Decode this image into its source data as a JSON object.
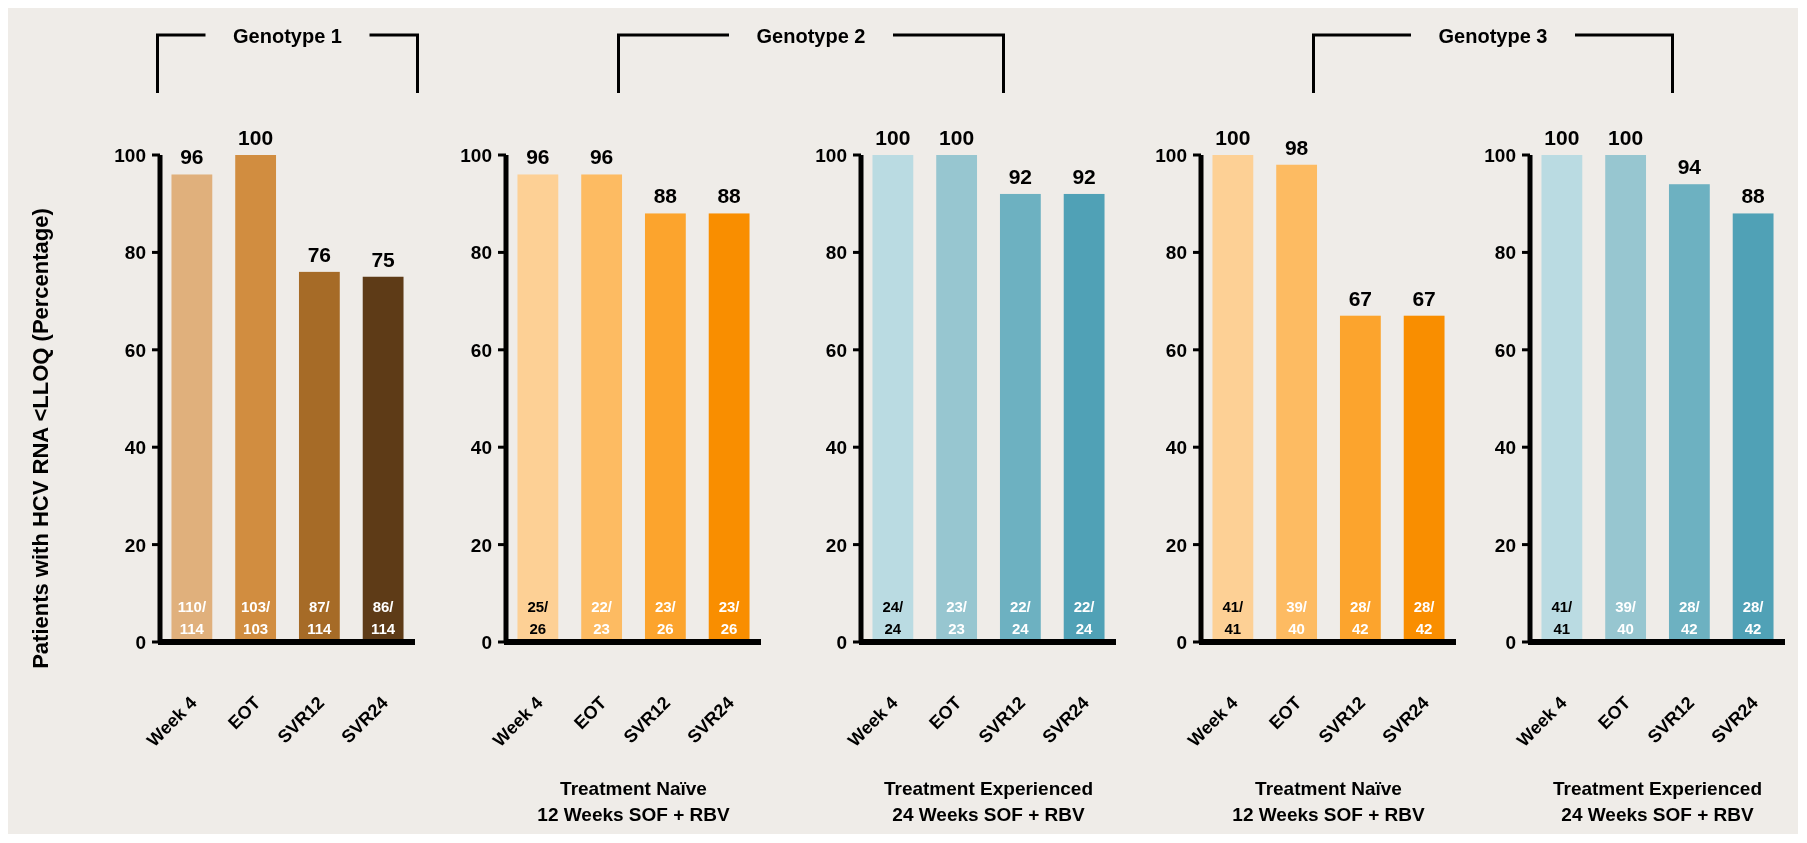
{
  "chart_data": [
    {
      "type": "bar",
      "title": "Genotype 1",
      "ylabel": "Patients with HCV RNA <LLOQ (Percentage)",
      "categories": [
        "Week 4",
        "EOT",
        "SVR12",
        "SVR24"
      ],
      "values": [
        96,
        100,
        76,
        75
      ],
      "colors": [
        "#e0b07c",
        "#d18d40",
        "#a66b27",
        "#5e3b17"
      ],
      "ylim": [
        0,
        100
      ],
      "yticks": [
        0,
        20,
        40,
        60,
        80,
        100
      ],
      "data_labels": true,
      "annotations": [
        {
          "text": "110/114",
          "x": "Week 4"
        },
        {
          "text": "103/103",
          "x": "EOT"
        },
        {
          "text": "87/114",
          "x": "SVR12"
        },
        {
          "text": "86/114",
          "x": "SVR24"
        }
      ]
    },
    {
      "type": "bar",
      "title": "Genotype 2",
      "xlabel": "Treatment Naïve\n12 Weeks SOF + RBV",
      "categories": [
        "Week 4",
        "EOT",
        "SVR12",
        "SVR24"
      ],
      "values": [
        96,
        96,
        88,
        88
      ],
      "colors": [
        "#fdd095",
        "#fdbb62",
        "#fca42d",
        "#f98e00"
      ],
      "ylim": [
        0,
        100
      ],
      "yticks": [
        0,
        20,
        40,
        60,
        80,
        100
      ],
      "data_labels": true,
      "annotations": [
        {
          "text": "25/26",
          "x": "Week 4"
        },
        {
          "text": "22/23",
          "x": "EOT"
        },
        {
          "text": "23/26",
          "x": "SVR12"
        },
        {
          "text": "23/26",
          "x": "SVR24"
        }
      ]
    },
    {
      "type": "bar",
      "xlabel": "Treatment Experienced\n24 Weeks SOF + RBV",
      "categories": [
        "Week 4",
        "EOT",
        "SVR12",
        "SVR24"
      ],
      "values": [
        100,
        100,
        92,
        92
      ],
      "colors": [
        "#badbe2",
        "#97c6d0",
        "#6db1c1",
        "#50a1b6"
      ],
      "ylim": [
        0,
        100
      ],
      "yticks": [
        0,
        20,
        40,
        60,
        80,
        100
      ],
      "data_labels": true,
      "annotations": [
        {
          "text": "24/24",
          "x": "Week 4"
        },
        {
          "text": "23/23",
          "x": "EOT"
        },
        {
          "text": "22/24",
          "x": "SVR12"
        },
        {
          "text": "22/24",
          "x": "SVR24"
        }
      ]
    },
    {
      "type": "bar",
      "title": "Genotype 3",
      "xlabel": "Treatment Naïve\n12 Weeks SOF + RBV",
      "categories": [
        "Week 4",
        "EOT",
        "SVR12",
        "SVR24"
      ],
      "values": [
        100,
        98,
        67,
        67
      ],
      "colors": [
        "#fdd095",
        "#fdbb62",
        "#fca42d",
        "#f98e00"
      ],
      "ylim": [
        0,
        100
      ],
      "yticks": [
        0,
        20,
        40,
        60,
        80,
        100
      ],
      "data_labels": true,
      "annotations": [
        {
          "text": "41/41",
          "x": "Week 4"
        },
        {
          "text": "39/40",
          "x": "EOT"
        },
        {
          "text": "28/42",
          "x": "SVR12"
        },
        {
          "text": "28/42",
          "x": "SVR24"
        }
      ]
    },
    {
      "type": "bar",
      "xlabel": "Treatment Experienced\n24 Weeks SOF + RBV",
      "categories": [
        "Week 4",
        "EOT",
        "SVR12",
        "SVR24"
      ],
      "values": [
        100,
        100,
        94,
        88
      ],
      "colors": [
        "#badbe2",
        "#97c6d0",
        "#6db1c1",
        "#50a1b6"
      ],
      "ylim": [
        0,
        100
      ],
      "yticks": [
        0,
        20,
        40,
        60,
        80,
        100
      ],
      "data_labels": true,
      "annotations": [
        {
          "text": "41/41",
          "x": "Week 4"
        },
        {
          "text": "39/40",
          "x": "EOT"
        },
        {
          "text": "28/42",
          "x": "SVR12"
        },
        {
          "text": "28/42",
          "x": "SVR24"
        }
      ]
    }
  ]
}
